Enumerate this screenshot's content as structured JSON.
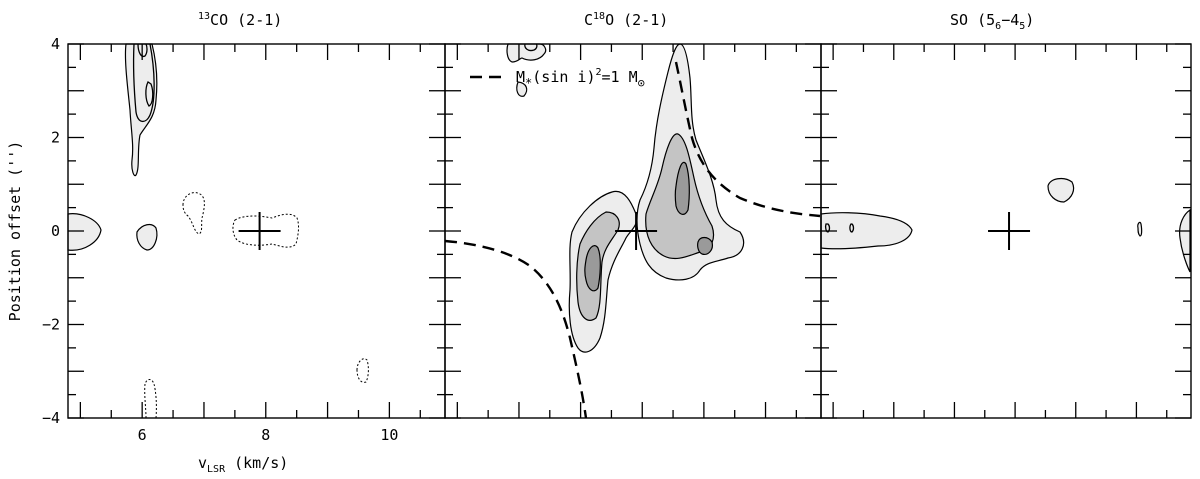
{
  "chart_data": [
    {
      "type": "contour",
      "title": "CO (2-1)",
      "title_superscript": "13",
      "xlabel_main": "v",
      "xlabel_sub": "LSR",
      "xlabel_rest": " (km/s)",
      "ylabel": "Position offset ('')",
      "xlim": [
        4.8,
        10.9
      ],
      "ylim": [
        -4,
        4
      ],
      "xticks": [
        6,
        8,
        10
      ],
      "yticks": [
        -4,
        -2,
        0,
        2,
        4
      ],
      "cross": [
        7.9,
        0
      ]
    },
    {
      "type": "contour",
      "title": "O (2-1)",
      "title_prefix": "C",
      "title_superscript": "18",
      "xlim": [
        4.8,
        10.9
      ],
      "ylim": [
        -4,
        4
      ],
      "cross": [
        7.9,
        0
      ],
      "legend": {
        "prefix": "M",
        "subscript": "*",
        "middle": "(sin i)",
        "superscript": "2",
        "suffix": "=1 M",
        "sun_subscript": "⊙"
      },
      "keplerian_mass_msun": 1
    },
    {
      "type": "contour",
      "title": "SO (5",
      "title_sub1": "6",
      "title_mid": "−4",
      "title_sub2": "5",
      "title_end": ")",
      "xlim": [
        4.8,
        10.9
      ],
      "ylim": [
        -4,
        4
      ],
      "cross": [
        7.9,
        0
      ]
    }
  ]
}
